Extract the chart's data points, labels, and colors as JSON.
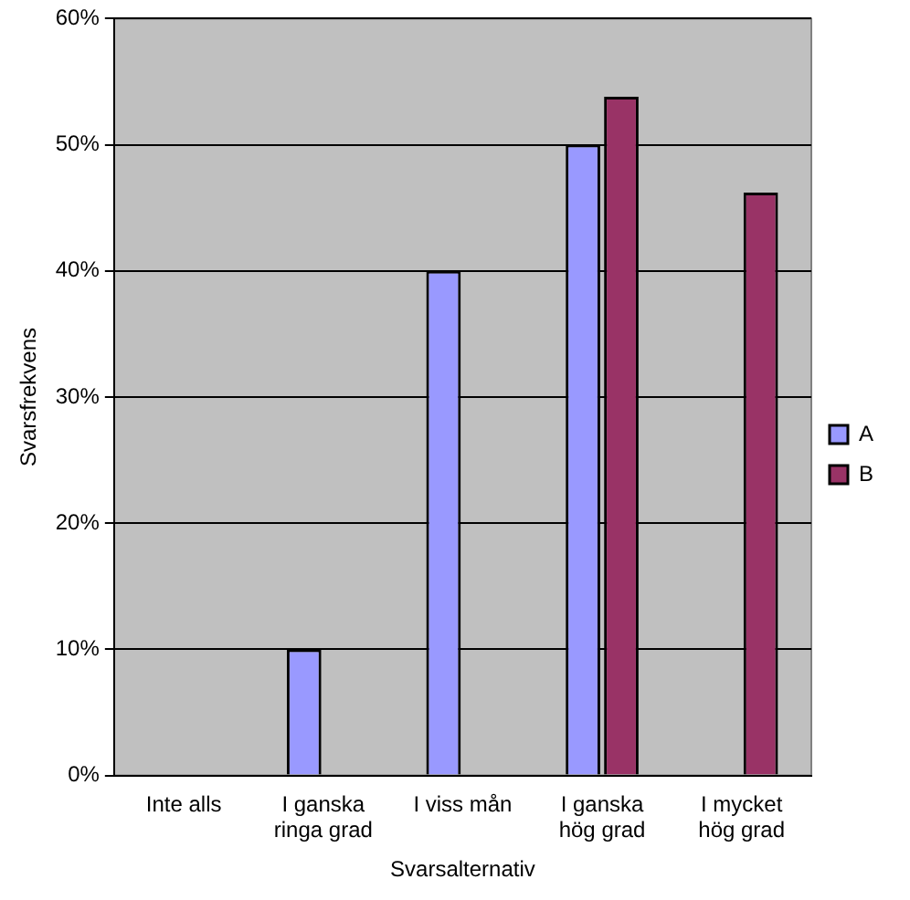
{
  "chart_data": {
    "type": "bar",
    "xlabel": "Svarsalternativ",
    "ylabel": "Svarsfrekvens",
    "categories": [
      "Inte alls",
      "I ganska ringa grad",
      "I viss mån",
      "I ganska hög grad",
      "I mycket hög grad"
    ],
    "series": [
      {
        "name": "A",
        "color": "#9999ff",
        "values": [
          0,
          10,
          40,
          50,
          0
        ]
      },
      {
        "name": "B",
        "color": "#993366",
        "values": [
          0,
          0,
          0,
          53.8,
          46.2
        ]
      }
    ],
    "ylim": [
      0,
      60
    ],
    "yticks": [
      {
        "value": 0,
        "label": "0%"
      },
      {
        "value": 10,
        "label": "10%"
      },
      {
        "value": 20,
        "label": "20%"
      },
      {
        "value": 30,
        "label": "30%"
      },
      {
        "value": 40,
        "label": "40%"
      },
      {
        "value": 50,
        "label": "50%"
      },
      {
        "value": 60,
        "label": "60%"
      }
    ],
    "grid": "y",
    "legend": "right"
  }
}
